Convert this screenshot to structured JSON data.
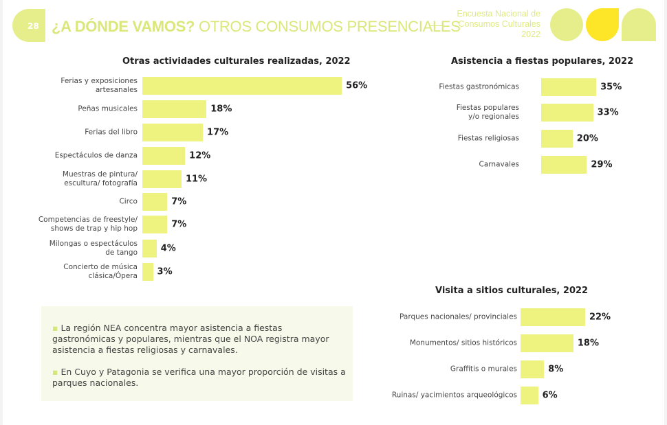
{
  "header": {
    "page_number": "28",
    "title_bold": "¿A DÓNDE VAMOS?",
    "title_rest": " OTROS CONSUMOS PRESENCIALES",
    "survey_lines": [
      "Encuesta Nacional de",
      "Consumos Culturales",
      "2022"
    ]
  },
  "colors": {
    "bar": "#eef27e",
    "accent": "#e6ee8c",
    "logo_yellow": "#fde528"
  },
  "chart_data": [
    {
      "type": "bar",
      "orientation": "horizontal",
      "title": "Otras actividades culturales realizadas, 2022",
      "categories": [
        "Ferias y exposiciones\nartesanales",
        "Peñas musicales",
        "Ferias del libro",
        "Espectáculos de danza",
        "Muestras de pintura/\nescultura/ fotografía",
        "Circo",
        "Competencias de freestyle/\nshows de trap y hip hop",
        "Milongas o espectáculos\nde tango",
        "Concierto de música\nclásica/Ópera"
      ],
      "values": [
        56,
        18,
        17,
        12,
        11,
        7,
        7,
        4,
        3
      ],
      "labels": [
        "56%",
        "18%",
        "17%",
        "12%",
        "11%",
        "7%",
        "7%",
        "4%",
        "3%"
      ]
    },
    {
      "type": "bar",
      "orientation": "horizontal",
      "title": "Asistencia a fiestas populares, 2022",
      "categories": [
        "Fiestas gastronómicas",
        "Fiestas populares\ny/o regionales",
        "Fiestas religiosas",
        "Carnavales"
      ],
      "values": [
        35,
        33,
        20,
        29
      ],
      "labels": [
        "35%",
        "33%",
        "20%",
        "29%"
      ]
    },
    {
      "type": "bar",
      "orientation": "horizontal",
      "title": "Visita a sitios culturales, 2022",
      "categories": [
        "Parques nacionales/ provinciales",
        "Monumentos/ sitios históricos",
        "Graffitis o murales",
        "Ruinas/ yacimientos arqueológicos"
      ],
      "values": [
        22,
        18,
        8,
        6
      ],
      "labels": [
        "22%",
        "18%",
        "8%",
        "6%"
      ]
    }
  ],
  "notes": [
    "La región NEA concentra mayor asistencia a fiestas gastronómicas y populares, mientras que el NOA registra mayor asistencia a fiestas religiosas y carnavales.",
    "En Cuyo y Patagonia se verifica una mayor proporción de visitas a parques nacionales."
  ]
}
